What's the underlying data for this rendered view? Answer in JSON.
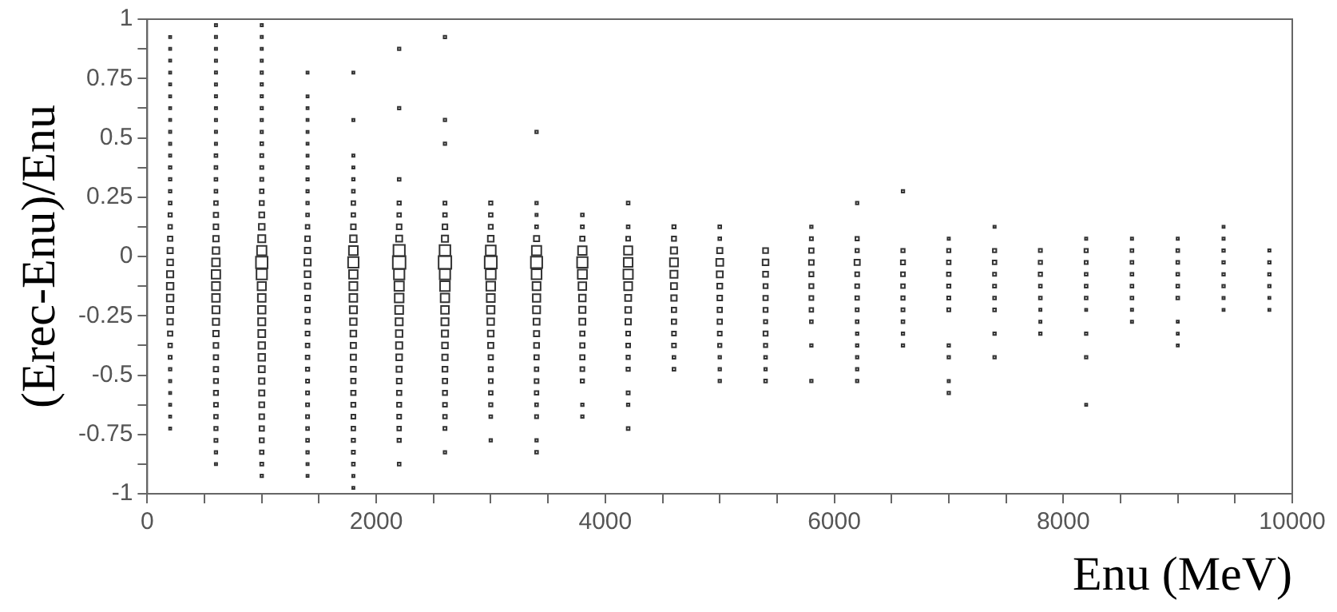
{
  "chart_data": {
    "type": "bubble",
    "xlabel": "Enu (MeV)",
    "ylabel": "(Erec-Enu)/Enu",
    "marker": "square",
    "legend": false,
    "grid": false,
    "xlim": [
      0,
      10000
    ],
    "ylim": [
      -1,
      1
    ],
    "xticks": [
      0,
      {
        "value": 500,
        "label": null
      },
      {
        "value": 1000,
        "label": null
      },
      {
        "value": 1500,
        "label": null
      },
      2000,
      {
        "value": 2500,
        "label": null
      },
      {
        "value": 3000,
        "label": null
      },
      {
        "value": 3500,
        "label": null
      },
      4000,
      {
        "value": 4500,
        "label": null
      },
      {
        "value": 5000,
        "label": null
      },
      {
        "value": 5500,
        "label": null
      },
      6000,
      {
        "value": 6500,
        "label": null
      },
      {
        "value": 7000,
        "label": null
      },
      {
        "value": 7500,
        "label": null
      },
      8000,
      {
        "value": 8500,
        "label": null
      },
      {
        "value": 9000,
        "label": null
      },
      {
        "value": 9500,
        "label": null
      },
      10000
    ],
    "yticks": [
      -1,
      {
        "value": -0.875,
        "label": null
      },
      -0.75,
      {
        "value": -0.625,
        "label": null
      },
      -0.5,
      {
        "value": -0.375,
        "label": null
      },
      -0.25,
      {
        "value": -0.125,
        "label": null
      },
      0,
      {
        "value": 0.125,
        "label": null
      },
      0.25,
      {
        "value": 0.375,
        "label": null
      },
      0.5,
      {
        "value": 0.625,
        "label": null
      },
      0.75,
      {
        "value": 0.875,
        "label": null
      },
      1
    ],
    "series": [
      {
        "color": "#333333",
        "x": [
          200,
          200,
          200,
          200,
          200,
          200,
          200,
          200,
          200,
          200,
          200,
          200,
          200,
          200,
          200,
          200,
          200,
          200,
          200,
          200,
          200,
          200,
          200,
          200,
          200,
          200,
          200,
          200,
          200,
          200,
          200,
          200,
          200,
          200
        ],
        "values": [
          0.925,
          0.875,
          0.825,
          0.775,
          0.725,
          0.675,
          0.625,
          0.575,
          0.525,
          0.475,
          0.425,
          0.375,
          0.325,
          0.275,
          0.225,
          0.175,
          0.125,
          0.075,
          0.025,
          -0.025,
          -0.075,
          -0.125,
          -0.175,
          -0.225,
          -0.275,
          -0.325,
          -0.375,
          -0.425,
          -0.475,
          -0.525,
          -0.575,
          -0.625,
          -0.675,
          -0.725
        ],
        "sizes": [
          0.0014,
          0.0014,
          0.0014,
          0.0014,
          0.0014,
          0.0014,
          0.0014,
          0.0014,
          0.0025,
          0.0025,
          0.0025,
          0.0056,
          0.0056,
          0.0056,
          0.01,
          0.023,
          0.031,
          0.063,
          0.11,
          0.14,
          0.18,
          0.2,
          0.2,
          0.16,
          0.12,
          0.063,
          0.031,
          0.016,
          0.0056,
          0.0025,
          0.0014,
          0.0014,
          0.0014,
          0.0014
        ]
      },
      {
        "color": "#333333",
        "x": [
          600,
          600,
          600,
          600,
          600,
          600,
          600,
          600,
          600,
          600,
          600,
          600,
          600,
          600,
          600,
          600,
          600,
          600,
          600,
          600,
          600,
          600,
          600,
          600,
          600,
          600,
          600,
          600,
          600,
          600,
          600,
          600,
          600,
          600,
          600,
          600,
          600,
          600
        ],
        "values": [
          0.975,
          0.925,
          0.875,
          0.825,
          0.775,
          0.725,
          0.675,
          0.625,
          0.575,
          0.525,
          0.475,
          0.425,
          0.375,
          0.325,
          0.275,
          0.225,
          0.175,
          0.125,
          0.075,
          0.025,
          -0.025,
          -0.075,
          -0.125,
          -0.175,
          -0.225,
          -0.275,
          -0.325,
          -0.375,
          -0.425,
          -0.475,
          -0.525,
          -0.575,
          -0.625,
          -0.675,
          -0.725,
          -0.775,
          -0.825,
          -0.875
        ],
        "sizes": [
          0.0025,
          0.0025,
          0.0025,
          0.0025,
          0.0025,
          0.0025,
          0.0025,
          0.0025,
          0.0025,
          0.0025,
          0.0025,
          0.01,
          0.01,
          0.01,
          0.01,
          0.031,
          0.063,
          0.076,
          0.12,
          0.2,
          0.3,
          0.39,
          0.33,
          0.3,
          0.25,
          0.18,
          0.12,
          0.076,
          0.063,
          0.063,
          0.051,
          0.051,
          0.04,
          0.031,
          0.023,
          0.016,
          0.0056,
          0.0025
        ]
      },
      {
        "color": "#333333",
        "x": [
          1000,
          1000,
          1000,
          1000,
          1000,
          1000,
          1000,
          1000,
          1000,
          1000,
          1000,
          1000,
          1000,
          1000,
          1000,
          1000,
          1000,
          1000,
          1000,
          1000,
          1000,
          1000,
          1000,
          1000,
          1000,
          1000,
          1000,
          1000,
          1000,
          1000,
          1000,
          1000,
          1000,
          1000,
          1000,
          1000,
          1000,
          1000,
          1000
        ],
        "values": [
          0.975,
          0.925,
          0.875,
          0.825,
          0.775,
          0.725,
          0.675,
          0.625,
          0.575,
          0.525,
          0.475,
          0.425,
          0.375,
          0.325,
          0.275,
          0.225,
          0.175,
          0.125,
          0.075,
          0.025,
          -0.025,
          -0.075,
          -0.125,
          -0.175,
          -0.225,
          -0.275,
          -0.325,
          -0.375,
          -0.425,
          -0.475,
          -0.525,
          -0.575,
          -0.625,
          -0.675,
          -0.725,
          -0.775,
          -0.825,
          -0.875,
          -0.925
        ],
        "sizes": [
          0.0025,
          0.0025,
          0.0025,
          0.0025,
          0.0039,
          0.0039,
          0.0039,
          0.0039,
          0.0039,
          0.0039,
          0.01,
          0.016,
          0.016,
          0.016,
          0.031,
          0.051,
          0.09,
          0.14,
          0.25,
          0.49,
          0.81,
          0.64,
          0.36,
          0.3,
          0.28,
          0.25,
          0.23,
          0.2,
          0.2,
          0.16,
          0.12,
          0.11,
          0.09,
          0.076,
          0.063,
          0.051,
          0.031,
          0.016,
          0.0056
        ]
      },
      {
        "color": "#333333",
        "x": [
          1400,
          1400,
          1400,
          1400,
          1400,
          1400,
          1400,
          1400,
          1400,
          1400,
          1400,
          1400,
          1400,
          1400,
          1400,
          1400,
          1400,
          1400,
          1400,
          1400,
          1400,
          1400,
          1400,
          1400,
          1400,
          1400,
          1400,
          1400,
          1400,
          1400,
          1400,
          1400,
          1400,
          1400
        ],
        "values": [
          0.775,
          0.675,
          0.625,
          0.575,
          0.525,
          0.475,
          0.425,
          0.375,
          0.325,
          0.275,
          0.225,
          0.175,
          0.125,
          0.075,
          0.025,
          -0.025,
          -0.075,
          -0.125,
          -0.175,
          -0.225,
          -0.275,
          -0.325,
          -0.375,
          -0.425,
          -0.475,
          -0.525,
          -0.575,
          -0.625,
          -0.675,
          -0.725,
          -0.775,
          -0.825,
          -0.875,
          -0.925
        ],
        "sizes": [
          0.0014,
          0.0014,
          0.0014,
          0.0014,
          0.0014,
          0.0014,
          0.0014,
          0.0039,
          0.0039,
          0.0039,
          0.0056,
          0.01,
          0.031,
          0.076,
          0.12,
          0.18,
          0.14,
          0.11,
          0.076,
          0.063,
          0.051,
          0.04,
          0.031,
          0.031,
          0.023,
          0.016,
          0.016,
          0.016,
          0.016,
          0.01,
          0.01,
          0.0056,
          0.0025,
          0.0014
        ]
      },
      {
        "color": "#333333",
        "x": [
          1800,
          1800,
          1800,
          1800,
          1800,
          1800,
          1800,
          1800,
          1800,
          1800,
          1800,
          1800,
          1800,
          1800,
          1800,
          1800,
          1800,
          1800,
          1800,
          1800,
          1800,
          1800,
          1800,
          1800,
          1800,
          1800,
          1800,
          1800,
          1800,
          1800,
          1800
        ],
        "values": [
          0.775,
          0.575,
          0.425,
          0.375,
          0.325,
          0.275,
          0.225,
          0.175,
          0.125,
          0.075,
          0.025,
          -0.025,
          -0.075,
          -0.125,
          -0.175,
          -0.225,
          -0.275,
          -0.325,
          -0.375,
          -0.425,
          -0.475,
          -0.525,
          -0.575,
          -0.625,
          -0.675,
          -0.725,
          -0.775,
          -0.825,
          -0.875,
          -0.925,
          -0.975
        ],
        "sizes": [
          0.0014,
          0.0025,
          0.0025,
          0.0025,
          0.0056,
          0.01,
          0.031,
          0.031,
          0.076,
          0.2,
          0.42,
          0.64,
          0.39,
          0.33,
          0.3,
          0.25,
          0.2,
          0.14,
          0.11,
          0.11,
          0.09,
          0.063,
          0.063,
          0.051,
          0.04,
          0.031,
          0.023,
          0.016,
          0.01,
          0.0025,
          0.0014
        ]
      },
      {
        "color": "#333333",
        "x": [
          2200,
          2200,
          2200,
          2200,
          2200,
          2200,
          2200,
          2200,
          2200,
          2200,
          2200,
          2200,
          2200,
          2200,
          2200,
          2200,
          2200,
          2200,
          2200,
          2200,
          2200,
          2200,
          2200,
          2200,
          2200
        ],
        "values": [
          0.875,
          0.625,
          0.325,
          0.225,
          0.175,
          0.125,
          0.075,
          0.025,
          -0.025,
          -0.075,
          -0.125,
          -0.175,
          -0.225,
          -0.275,
          -0.325,
          -0.375,
          -0.425,
          -0.475,
          -0.525,
          -0.575,
          -0.625,
          -0.675,
          -0.725,
          -0.775,
          -0.875
        ],
        "sizes": [
          0.0056,
          0.0056,
          0.01,
          0.023,
          0.031,
          0.076,
          0.16,
          0.77,
          1,
          0.64,
          0.49,
          0.42,
          0.33,
          0.25,
          0.2,
          0.18,
          0.14,
          0.11,
          0.076,
          0.063,
          0.051,
          0.04,
          0.031,
          0.023,
          0.01
        ]
      },
      {
        "color": "#333333",
        "x": [
          2600,
          2600,
          2600,
          2600,
          2600,
          2600,
          2600,
          2600,
          2600,
          2600,
          2600,
          2600,
          2600,
          2600,
          2600,
          2600,
          2600,
          2600,
          2600,
          2600,
          2600,
          2600,
          2600,
          2600
        ],
        "values": [
          0.925,
          0.575,
          0.475,
          0.225,
          0.175,
          0.125,
          0.075,
          0.025,
          -0.025,
          -0.075,
          -0.125,
          -0.175,
          -0.225,
          -0.275,
          -0.325,
          -0.375,
          -0.425,
          -0.475,
          -0.525,
          -0.575,
          -0.625,
          -0.675,
          -0.725,
          -0.825
        ],
        "sizes": [
          0.0056,
          0.0056,
          0.0056,
          0.016,
          0.031,
          0.076,
          0.18,
          0.68,
          1,
          0.64,
          0.53,
          0.39,
          0.3,
          0.25,
          0.18,
          0.14,
          0.12,
          0.09,
          0.063,
          0.051,
          0.04,
          0.031,
          0.016,
          0.0056
        ]
      },
      {
        "color": "#333333",
        "x": [
          3000,
          3000,
          3000,
          3000,
          3000,
          3000,
          3000,
          3000,
          3000,
          3000,
          3000,
          3000,
          3000,
          3000,
          3000,
          3000,
          3000,
          3000,
          3000,
          3000
        ],
        "values": [
          0.225,
          0.175,
          0.125,
          0.075,
          0.025,
          -0.025,
          -0.075,
          -0.125,
          -0.175,
          -0.225,
          -0.275,
          -0.325,
          -0.375,
          -0.425,
          -0.475,
          -0.525,
          -0.575,
          -0.625,
          -0.675,
          -0.775
        ],
        "sizes": [
          0.023,
          0.031,
          0.051,
          0.14,
          0.56,
          0.9,
          0.56,
          0.42,
          0.33,
          0.28,
          0.2,
          0.14,
          0.11,
          0.063,
          0.051,
          0.04,
          0.031,
          0.023,
          0.01,
          0.0056
        ]
      },
      {
        "color": "#333333",
        "x": [
          3400,
          3400,
          3400,
          3400,
          3400,
          3400,
          3400,
          3400,
          3400,
          3400,
          3400,
          3400,
          3400,
          3400,
          3400,
          3400,
          3400,
          3400,
          3400,
          3400,
          3400,
          3400
        ],
        "values": [
          0.525,
          0.225,
          0.175,
          0.125,
          0.075,
          0.025,
          -0.025,
          -0.075,
          -0.125,
          -0.175,
          -0.225,
          -0.275,
          -0.325,
          -0.375,
          -0.425,
          -0.475,
          -0.525,
          -0.575,
          -0.625,
          -0.675,
          -0.775,
          -0.825
        ],
        "sizes": [
          0.0056,
          0.0056,
          0.0025,
          0.01,
          0.11,
          0.49,
          0.77,
          0.56,
          0.33,
          0.28,
          0.25,
          0.16,
          0.11,
          0.09,
          0.063,
          0.031,
          0.04,
          0.031,
          0.01,
          0.016,
          0.0056,
          0.01
        ]
      },
      {
        "color": "#333333",
        "x": [
          3800,
          3800,
          3800,
          3800,
          3800,
          3800,
          3800,
          3800,
          3800,
          3800,
          3800,
          3800,
          3800,
          3800,
          3800,
          3800,
          3800
        ],
        "values": [
          0.175,
          0.125,
          0.075,
          0.025,
          -0.025,
          -0.075,
          -0.125,
          -0.175,
          -0.225,
          -0.275,
          -0.325,
          -0.375,
          -0.425,
          -0.475,
          -0.525,
          -0.625,
          -0.675
        ],
        "sizes": [
          0.01,
          0.016,
          0.063,
          0.39,
          0.64,
          0.46,
          0.3,
          0.2,
          0.18,
          0.16,
          0.063,
          0.063,
          0.063,
          0.04,
          0.023,
          0.0056,
          0.0056
        ]
      },
      {
        "color": "#333333",
        "x": [
          4200,
          4200,
          4200,
          4200,
          4200,
          4200,
          4200,
          4200,
          4200,
          4200,
          4200,
          4200,
          4200,
          4200,
          4200,
          4200,
          4200
        ],
        "values": [
          0.225,
          0.125,
          0.075,
          0.025,
          -0.025,
          -0.075,
          -0.125,
          -0.175,
          -0.225,
          -0.275,
          -0.325,
          -0.375,
          -0.425,
          -0.475,
          -0.575,
          -0.625,
          -0.725
        ],
        "sizes": [
          0.01,
          0.01,
          0.04,
          0.36,
          0.42,
          0.49,
          0.33,
          0.16,
          0.14,
          0.12,
          0.04,
          0.04,
          0.023,
          0.023,
          0.016,
          0.0056,
          0.01
        ]
      },
      {
        "color": "#333333",
        "x": [
          4600,
          4600,
          4600,
          4600,
          4600,
          4600,
          4600,
          4600,
          4600,
          4600,
          4600,
          4600,
          4600
        ],
        "values": [
          0.125,
          0.075,
          0.025,
          -0.025,
          -0.075,
          -0.125,
          -0.175,
          -0.225,
          -0.275,
          -0.325,
          -0.375,
          -0.425,
          -0.475
        ],
        "sizes": [
          0.023,
          0.051,
          0.18,
          0.33,
          0.25,
          0.16,
          0.12,
          0.063,
          0.063,
          0.04,
          0.04,
          0.01,
          0.01
        ]
      },
      {
        "color": "#333333",
        "x": [
          5000,
          5000,
          5000,
          5000,
          5000,
          5000,
          5000,
          5000,
          5000,
          5000,
          5000,
          5000,
          5000,
          5000
        ],
        "values": [
          0.125,
          0.075,
          0.025,
          -0.025,
          -0.075,
          -0.125,
          -0.175,
          -0.225,
          -0.275,
          -0.325,
          -0.375,
          -0.425,
          -0.475,
          -0.525
        ],
        "sizes": [
          0.01,
          0.01,
          0.11,
          0.23,
          0.16,
          0.09,
          0.076,
          0.063,
          0.063,
          0.04,
          0.023,
          0.0056,
          0.0056,
          0.0056
        ]
      },
      {
        "color": "#333333",
        "x": [
          5400,
          5400,
          5400,
          5400,
          5400,
          5400,
          5400,
          5400,
          5400,
          5400,
          5400,
          5400
        ],
        "values": [
          0.025,
          -0.025,
          -0.075,
          -0.125,
          -0.175,
          -0.225,
          -0.275,
          -0.325,
          -0.375,
          -0.425,
          -0.475,
          -0.525
        ],
        "sizes": [
          0.09,
          0.14,
          0.09,
          0.051,
          0.063,
          0.051,
          0.023,
          0.051,
          0.023,
          0.01,
          0.0056,
          0.01
        ]
      },
      {
        "color": "#333333",
        "x": [
          5800,
          5800,
          5800,
          5800,
          5800,
          5800,
          5800,
          5800,
          5800,
          5800,
          5800
        ],
        "values": [
          0.125,
          0.075,
          0.025,
          -0.025,
          -0.075,
          -0.125,
          -0.175,
          -0.225,
          -0.275,
          -0.375,
          -0.525
        ],
        "sizes": [
          0.0056,
          0.016,
          0.063,
          0.076,
          0.051,
          0.051,
          0.04,
          0.031,
          0.01,
          0.0056,
          0.0056
        ]
      },
      {
        "color": "#333333",
        "x": [
          6200,
          6200,
          6200,
          6200,
          6200,
          6200,
          6200,
          6200,
          6200,
          6200,
          6200,
          6200,
          6200,
          6200
        ],
        "values": [
          0.225,
          0.075,
          0.025,
          -0.025,
          -0.075,
          -0.125,
          -0.175,
          -0.225,
          -0.275,
          -0.325,
          -0.375,
          -0.425,
          -0.475,
          -0.525
        ],
        "sizes": [
          0.0056,
          0.023,
          0.023,
          0.11,
          0.04,
          0.04,
          0.031,
          0.016,
          0.01,
          0.0056,
          0.0056,
          0.0056,
          0.0056,
          0.0056
        ]
      },
      {
        "color": "#333333",
        "x": [
          6600,
          6600,
          6600,
          6600,
          6600,
          6600,
          6600,
          6600,
          6600,
          6600
        ],
        "values": [
          0.275,
          0.025,
          -0.025,
          -0.075,
          -0.125,
          -0.175,
          -0.225,
          -0.275,
          -0.325,
          -0.375
        ],
        "sizes": [
          0.0056,
          0.023,
          0.051,
          0.04,
          0.031,
          0.023,
          0.016,
          0.01,
          0.0056,
          0.0056
        ]
      },
      {
        "color": "#333333",
        "x": [
          7000,
          7000,
          7000,
          7000,
          7000,
          7000,
          7000,
          7000,
          7000,
          7000,
          7000
        ],
        "values": [
          0.075,
          0.025,
          -0.025,
          -0.075,
          -0.125,
          -0.175,
          -0.225,
          -0.375,
          -0.425,
          -0.525,
          -0.575
        ],
        "sizes": [
          0.0025,
          0.023,
          0.031,
          0.031,
          0.023,
          0.016,
          0.016,
          0.0056,
          0.0056,
          0.0025,
          0.0056
        ]
      },
      {
        "color": "#333333",
        "x": [
          7400,
          7400,
          7400,
          7400,
          7400,
          7400,
          7400,
          7400,
          7400
        ],
        "values": [
          0.125,
          0.025,
          -0.025,
          -0.075,
          -0.125,
          -0.175,
          -0.225,
          -0.325,
          -0.425
        ],
        "sizes": [
          0.0025,
          0.023,
          0.031,
          0.016,
          0.016,
          0.01,
          0.01,
          0.0056,
          0.0056
        ]
      },
      {
        "color": "#333333",
        "x": [
          7800,
          7800,
          7800,
          7800,
          7800,
          7800,
          7800,
          7800
        ],
        "values": [
          0.025,
          -0.025,
          -0.075,
          -0.125,
          -0.175,
          -0.225,
          -0.275,
          -0.325
        ],
        "sizes": [
          0.016,
          0.023,
          0.023,
          0.01,
          0.01,
          0.0025,
          0.0025,
          0.0056
        ]
      },
      {
        "color": "#333333",
        "x": [
          8200,
          8200,
          8200,
          8200,
          8200,
          8200,
          8200,
          8200,
          8200,
          8200
        ],
        "values": [
          0.075,
          0.025,
          -0.025,
          -0.075,
          -0.125,
          -0.175,
          -0.225,
          -0.325,
          -0.425,
          -0.625
        ],
        "sizes": [
          0.0025,
          0.023,
          0.016,
          0.01,
          0.01,
          0.01,
          0.0014,
          0.0056,
          0.0056,
          0.0014
        ]
      },
      {
        "color": "#333333",
        "x": [
          8600,
          8600,
          8600,
          8600,
          8600,
          8600,
          8600,
          8600
        ],
        "values": [
          0.075,
          0.025,
          -0.025,
          -0.075,
          -0.125,
          -0.175,
          -0.225,
          -0.275
        ],
        "sizes": [
          0.0025,
          0.01,
          0.01,
          0.01,
          0.01,
          0.01,
          0.0025,
          0.0025
        ]
      },
      {
        "color": "#333333",
        "x": [
          9000,
          9000,
          9000,
          9000,
          9000,
          9000,
          9000,
          9000,
          9000
        ],
        "values": [
          0.075,
          0.025,
          -0.025,
          -0.075,
          -0.125,
          -0.175,
          -0.275,
          -0.325,
          -0.375
        ],
        "sizes": [
          0.0025,
          0.01,
          0.01,
          0.01,
          0.01,
          0.01,
          0.0014,
          0.0014,
          0.0014
        ]
      },
      {
        "color": "#333333",
        "x": [
          9400,
          9400,
          9400,
          9400,
          9400,
          9400,
          9400,
          9400
        ],
        "values": [
          0.125,
          0.075,
          0.025,
          -0.025,
          -0.075,
          -0.125,
          -0.175,
          -0.225
        ],
        "sizes": [
          0.0014,
          0.0025,
          0.0056,
          0.0056,
          0.0056,
          0.0056,
          0.0025,
          0.0014
        ]
      },
      {
        "color": "#333333",
        "x": [
          9800,
          9800,
          9800,
          9800,
          9800,
          9800
        ],
        "values": [
          0.025,
          -0.025,
          -0.075,
          -0.125,
          -0.175,
          -0.225
        ],
        "sizes": [
          0.0025,
          0.0056,
          0.0056,
          0.0056,
          0.0014,
          0.0014
        ]
      }
    ]
  }
}
